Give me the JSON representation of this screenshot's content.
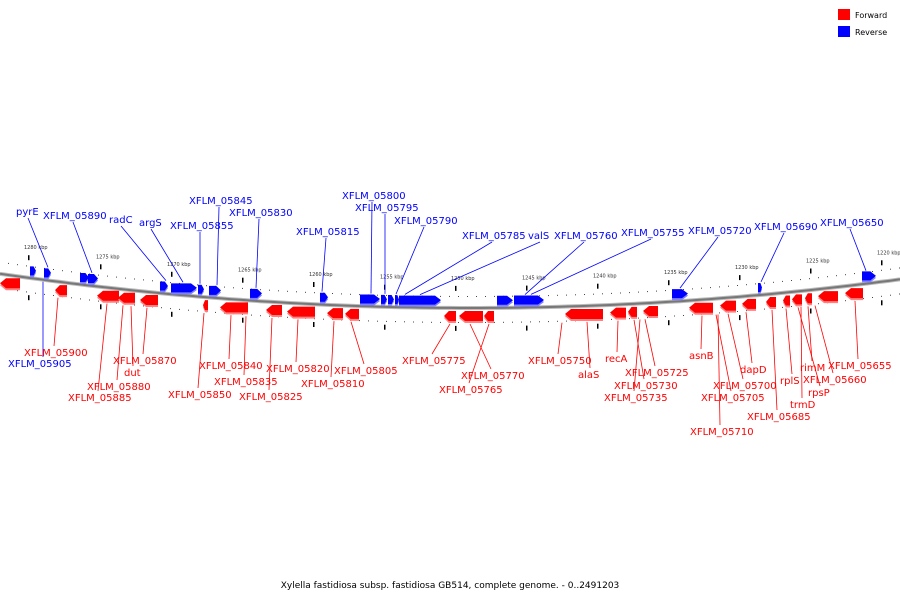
{
  "legend": [
    {
      "label": "Forward",
      "color": "#ff0000"
    },
    {
      "label": "Reverse",
      "color": "#0000ff"
    }
  ],
  "caption": "Xylella fastidiosa subsp. fastidiosa GB514, complete genome. - 0..2491203",
  "colors": {
    "forward": "#ff0000",
    "reverse": "#0000ff",
    "forward_shade": "#ff8080",
    "reverse_shade": "#8080ff",
    "backbone": "#888888"
  },
  "scale_ticks": [
    "1280 kbp",
    "1275 kbp",
    "1270 kbp",
    "1265 kbp",
    "1260 kbp",
    "1255 kbp",
    "1250 kbp",
    "1245 kbp",
    "1240 kbp",
    "1235 kbp",
    "1230 kbp",
    "1225 kbp",
    "1220 kbp"
  ],
  "genes": {
    "reverse": [
      {
        "name": "pyrE"
      },
      {
        "name": "XFLM_05890"
      },
      {
        "name": "radC"
      },
      {
        "name": "argS"
      },
      {
        "name": "XFLM_05855"
      },
      {
        "name": "XFLM_05845"
      },
      {
        "name": "XFLM_05830"
      },
      {
        "name": "XFLM_05815"
      },
      {
        "name": "XFLM_05800"
      },
      {
        "name": "XFLM_05795"
      },
      {
        "name": "XFLM_05790"
      },
      {
        "name": "XFLM_05785"
      },
      {
        "name": "valS"
      },
      {
        "name": "XFLM_05760"
      },
      {
        "name": "XFLM_05755"
      },
      {
        "name": "XFLM_05720"
      },
      {
        "name": "XFLM_05690"
      },
      {
        "name": "XFLM_05650"
      },
      {
        "name": "XFLM_05905"
      }
    ],
    "forward": [
      {
        "name": "XFLM_05900"
      },
      {
        "name": "XFLM_05870"
      },
      {
        "name": "dut"
      },
      {
        "name": "XFLM_05880"
      },
      {
        "name": "XFLM_05885"
      },
      {
        "name": "XFLM_05840"
      },
      {
        "name": "XFLM_05835"
      },
      {
        "name": "XFLM_05850"
      },
      {
        "name": "XFLM_05820"
      },
      {
        "name": "XFLM_05825"
      },
      {
        "name": "XFLM_05810"
      },
      {
        "name": "XFLM_05805"
      },
      {
        "name": "XFLM_05775"
      },
      {
        "name": "XFLM_05770"
      },
      {
        "name": "XFLM_05765"
      },
      {
        "name": "XFLM_05750"
      },
      {
        "name": "alaS"
      },
      {
        "name": "recA"
      },
      {
        "name": "XFLM_05725"
      },
      {
        "name": "XFLM_05730"
      },
      {
        "name": "XFLM_05735"
      },
      {
        "name": "asnB"
      },
      {
        "name": "XFLM_05700"
      },
      {
        "name": "XFLM_05705"
      },
      {
        "name": "XFLM_05710"
      },
      {
        "name": "dapD"
      },
      {
        "name": "XFLM_05685"
      },
      {
        "name": "rplS"
      },
      {
        "name": "trmD"
      },
      {
        "name": "rimM"
      },
      {
        "name": "XFLM_05660"
      },
      {
        "name": "rpsP"
      },
      {
        "name": "XFLM_05655"
      }
    ]
  }
}
